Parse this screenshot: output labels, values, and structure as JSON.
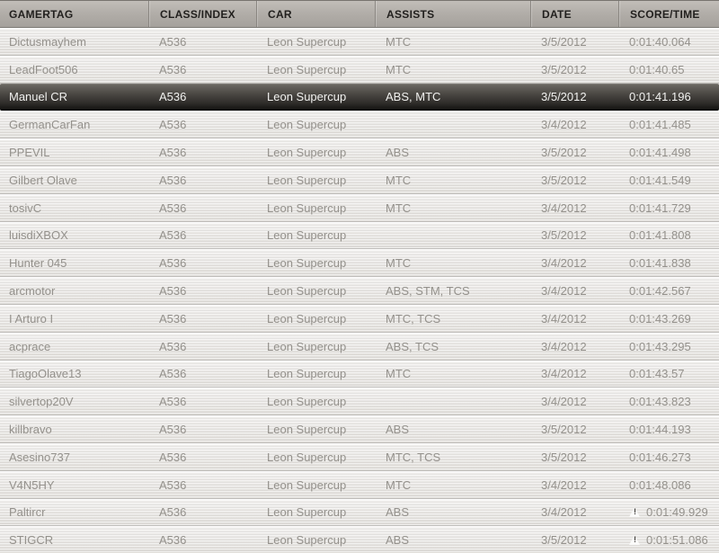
{
  "table": {
    "columns": [
      {
        "key": "gamertag",
        "label": "GAMERTAG"
      },
      {
        "key": "class_index",
        "label": "CLASS/INDEX"
      },
      {
        "key": "car",
        "label": "CAR"
      },
      {
        "key": "assists",
        "label": "ASSISTS"
      },
      {
        "key": "date",
        "label": "DATE"
      },
      {
        "key": "score_time",
        "label": "SCORE/TIME"
      }
    ],
    "rows": [
      {
        "gamertag": "Dictusmayhem",
        "class_index": "A536",
        "car": "Leon Supercup",
        "assists": "MTC",
        "date": "3/5/2012",
        "score_time": "0:01:40.064",
        "selected": false,
        "warning": false
      },
      {
        "gamertag": "LeadFoot506",
        "class_index": "A536",
        "car": "Leon Supercup",
        "assists": "MTC",
        "date": "3/5/2012",
        "score_time": "0:01:40.65",
        "selected": false,
        "warning": false
      },
      {
        "gamertag": "Manuel CR",
        "class_index": "A536",
        "car": "Leon Supercup",
        "assists": "ABS, MTC",
        "date": "3/5/2012",
        "score_time": "0:01:41.196",
        "selected": true,
        "warning": false
      },
      {
        "gamertag": "GermanCarFan",
        "class_index": "A536",
        "car": "Leon Supercup",
        "assists": "",
        "date": "3/4/2012",
        "score_time": "0:01:41.485",
        "selected": false,
        "warning": false
      },
      {
        "gamertag": "PPEVIL",
        "class_index": "A536",
        "car": "Leon Supercup",
        "assists": "ABS",
        "date": "3/5/2012",
        "score_time": "0:01:41.498",
        "selected": false,
        "warning": false
      },
      {
        "gamertag": "Gilbert Olave",
        "class_index": "A536",
        "car": "Leon Supercup",
        "assists": "MTC",
        "date": "3/5/2012",
        "score_time": "0:01:41.549",
        "selected": false,
        "warning": false
      },
      {
        "gamertag": "tosivC",
        "class_index": "A536",
        "car": "Leon Supercup",
        "assists": "MTC",
        "date": "3/4/2012",
        "score_time": "0:01:41.729",
        "selected": false,
        "warning": false
      },
      {
        "gamertag": "luisdiXBOX",
        "class_index": "A536",
        "car": "Leon Supercup",
        "assists": "",
        "date": "3/5/2012",
        "score_time": "0:01:41.808",
        "selected": false,
        "warning": false
      },
      {
        "gamertag": "Hunter 045",
        "class_index": "A536",
        "car": "Leon Supercup",
        "assists": "MTC",
        "date": "3/4/2012",
        "score_time": "0:01:41.838",
        "selected": false,
        "warning": false
      },
      {
        "gamertag": "arcmotor",
        "class_index": "A536",
        "car": "Leon Supercup",
        "assists": "ABS, STM, TCS",
        "date": "3/4/2012",
        "score_time": "0:01:42.567",
        "selected": false,
        "warning": false
      },
      {
        "gamertag": "I Arturo I",
        "class_index": "A536",
        "car": "Leon Supercup",
        "assists": "MTC, TCS",
        "date": "3/4/2012",
        "score_time": "0:01:43.269",
        "selected": false,
        "warning": false
      },
      {
        "gamertag": "acprace",
        "class_index": "A536",
        "car": "Leon Supercup",
        "assists": "ABS, TCS",
        "date": "3/4/2012",
        "score_time": "0:01:43.295",
        "selected": false,
        "warning": false
      },
      {
        "gamertag": "TiagoOlave13",
        "class_index": "A536",
        "car": "Leon Supercup",
        "assists": "MTC",
        "date": "3/4/2012",
        "score_time": "0:01:43.57",
        "selected": false,
        "warning": false
      },
      {
        "gamertag": "silvertop20V",
        "class_index": "A536",
        "car": "Leon Supercup",
        "assists": "",
        "date": "3/4/2012",
        "score_time": "0:01:43.823",
        "selected": false,
        "warning": false
      },
      {
        "gamertag": "killbravo",
        "class_index": "A536",
        "car": "Leon Supercup",
        "assists": "ABS",
        "date": "3/5/2012",
        "score_time": "0:01:44.193",
        "selected": false,
        "warning": false
      },
      {
        "gamertag": "Asesino737",
        "class_index": "A536",
        "car": "Leon Supercup",
        "assists": "MTC, TCS",
        "date": "3/5/2012",
        "score_time": "0:01:46.273",
        "selected": false,
        "warning": false
      },
      {
        "gamertag": "V4N5HY",
        "class_index": "A536",
        "car": "Leon Supercup",
        "assists": "MTC",
        "date": "3/4/2012",
        "score_time": "0:01:48.086",
        "selected": false,
        "warning": false
      },
      {
        "gamertag": "Paltircr",
        "class_index": "A536",
        "car": "Leon Supercup",
        "assists": "ABS",
        "date": "3/4/2012",
        "score_time": "0:01:49.929",
        "selected": false,
        "warning": true
      },
      {
        "gamertag": "STIGCR",
        "class_index": "A536",
        "car": "Leon Supercup",
        "assists": "ABS",
        "date": "3/5/2012",
        "score_time": "0:01:51.086",
        "selected": false,
        "warning": true
      }
    ]
  },
  "icons": {
    "dirty_lap_warning_glyph": "!"
  },
  "colors": {
    "header_bg_top": "#c2beb9",
    "header_bg_bottom": "#a5a19c",
    "header_text": "#211f1d",
    "row_bg": "#e7e5e2",
    "row_text": "#94918c",
    "selected_row_bg_top": "#6b6862",
    "selected_row_bg_bottom": "#131210",
    "selected_row_text": "#f1f1ef"
  }
}
